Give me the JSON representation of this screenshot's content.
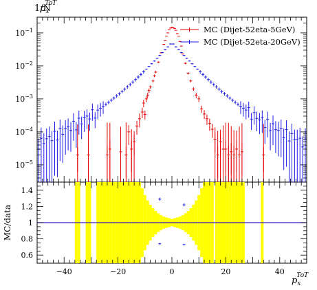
{
  "chart_data": [
    {
      "type": "scatter",
      "panel": "main",
      "title": "",
      "ylabel_prefix": "1/N",
      "ylabel_var": "p",
      "ylabel_sub": "x",
      "ylabel_sup": "ToT",
      "x_range": [
        -50,
        50
      ],
      "y_scale": "log",
      "y_range": [
        3e-06,
        0.3
      ],
      "y_ticks": [
        {
          "value": 1e-05,
          "mantissa": "10",
          "exp": "−5"
        },
        {
          "value": 0.0001,
          "mantissa": "10",
          "exp": "−4"
        },
        {
          "value": 0.001,
          "mantissa": "10",
          "exp": "−3"
        },
        {
          "value": 0.01,
          "mantissa": "10",
          "exp": "−2"
        },
        {
          "value": 0.1,
          "mantissa": "10",
          "exp": "−1"
        }
      ],
      "legend_position": "top-right",
      "series": [
        {
          "name": "MC (Dijet-52eta-5GeV)",
          "color": "#e60000",
          "marker": "error-bars",
          "points": [
            [
              -35.0,
              2e-05,
              0.7
            ],
            [
              -31.0,
              2e-05,
              0.8
            ],
            [
              -24.0,
              2e-05,
              0.9
            ],
            [
              -23.0,
              3e-05,
              0.9
            ],
            [
              -19.0,
              2.5e-05,
              0.8
            ],
            [
              -17.0,
              2e-05,
              0.8
            ],
            [
              -16.0,
              0.0001,
              0.6
            ],
            [
              -15.0,
              3e-05,
              0.8
            ],
            [
              -14.0,
              5e-05,
              0.6
            ],
            [
              -13.0,
              0.00015,
              0.45
            ],
            [
              -12.0,
              0.00025,
              0.45
            ],
            [
              -11.0,
              0.0004,
              0.35
            ],
            [
              -10.5,
              0.00075,
              0.25
            ],
            [
              -10.0,
              0.00034,
              0.3
            ],
            [
              -9.5,
              0.001,
              0.2
            ],
            [
              -9.0,
              0.0013,
              0.18
            ],
            [
              -8.5,
              0.0018,
              0.15
            ],
            [
              -8.0,
              0.0023,
              0.12
            ],
            [
              -7.0,
              0.0035,
              0.1
            ],
            [
              -6.5,
              0.005,
              0.09
            ],
            [
              -6.0,
              0.0065,
              0.08
            ],
            [
              -5.0,
              0.013,
              0.06
            ],
            [
              -4.0,
              0.025,
              0.04
            ],
            [
              -3.0,
              0.045,
              0.03
            ],
            [
              -2.5,
              0.06,
              0.02
            ],
            [
              -2.0,
              0.08,
              0.02
            ],
            [
              -1.5,
              0.1,
              0.02
            ],
            [
              -1.0,
              0.125,
              0.015
            ],
            [
              -0.5,
              0.14,
              0.015
            ],
            [
              0.0,
              0.15,
              0.015
            ],
            [
              0.5,
              0.145,
              0.015
            ],
            [
              1.0,
              0.135,
              0.015
            ],
            [
              1.5,
              0.12,
              0.015
            ],
            [
              2.0,
              0.095,
              0.02
            ],
            [
              2.5,
              0.08,
              0.02
            ],
            [
              3.0,
              0.055,
              0.03
            ],
            [
              3.5,
              0.04,
              0.03
            ],
            [
              4.0,
              0.023,
              0.04
            ],
            [
              5.0,
              0.012,
              0.06
            ],
            [
              6.0,
              0.006,
              0.08
            ],
            [
              7.0,
              0.0035,
              0.1
            ],
            [
              8.0,
              0.002,
              0.12
            ],
            [
              9.0,
              0.0013,
              0.18
            ],
            [
              10.0,
              0.001,
              0.2
            ],
            [
              11.0,
              0.0005,
              0.25
            ],
            [
              12.0,
              0.00035,
              0.3
            ],
            [
              13.0,
              0.00025,
              0.35
            ],
            [
              14.0,
              0.00018,
              0.4
            ],
            [
              15.0,
              0.00012,
              0.45
            ],
            [
              16.0,
              6e-05,
              0.6
            ],
            [
              17.0,
              2e-05,
              0.8
            ],
            [
              18.0,
              5e-05,
              0.6
            ],
            [
              19.0,
              3e-05,
              0.8
            ],
            [
              20.0,
              3e-05,
              0.8
            ],
            [
              21.0,
              2e-05,
              0.9
            ],
            [
              22.0,
              2.5e-05,
              0.8
            ],
            [
              23.0,
              2e-05,
              0.9
            ],
            [
              24.0,
              3e-05,
              0.8
            ],
            [
              25.0,
              2e-05,
              0.9
            ],
            [
              26.0,
              2.5e-05,
              0.8
            ],
            [
              34.0,
              2e-05,
              0.7
            ]
          ]
        },
        {
          "name": "MC (Dijet-52eta-20GeV)",
          "color": "#1a1ae6",
          "marker": "error-bars",
          "profile_formula": "0.044*exp(-|x|/4.6) + 6.0e-3*exp(-|x|/8.0) + 1.1e-3*exp(-|x|/14.0)",
          "bin_step": 1,
          "x_span": [
            -49.5,
            49.5
          ]
        }
      ]
    },
    {
      "type": "scatter",
      "panel": "ratio",
      "ylabel": "MC/data",
      "xlabel_var": "p",
      "xlabel_sub": "x",
      "xlabel_sup": "ToT",
      "x_range": [
        -50,
        50
      ],
      "y_range": [
        0.5,
        1.5
      ],
      "x_ticks": [
        -40,
        -20,
        0,
        20,
        40
      ],
      "x_tick_labels": [
        "−40",
        "−20",
        "0",
        "20",
        "40"
      ],
      "y_ticks": [
        0.6,
        0.8,
        1,
        1.2,
        1.4
      ],
      "y_tick_labels": [
        "0.6",
        "0.8",
        "1",
        "1.2",
        "1.4"
      ],
      "reference_line": 1.0,
      "uncertainty_band_color": "#ffff00",
      "full_band_bins_x": [
        -35.5,
        -34.5,
        -31.5,
        -30.5,
        -27.5,
        -26.5,
        -25.5,
        -24.5,
        -23.5,
        -22.5,
        -21.5,
        -20.5,
        -19.5,
        -18.5,
        -17.5,
        -16.5,
        -15.5,
        -14.5,
        -13.5,
        16.5,
        17.5,
        18.5,
        19.5,
        20.5,
        21.5,
        22.5,
        23.5,
        24.5,
        25.5,
        26.5,
        33.5
      ],
      "band_halfwidth_formula": "0.5 * exp(-(|x|-3)/5.5) for 3<=|x|<=13.5, min 0.05 near 0",
      "series": [
        {
          "name": "MC (Dijet-52eta-5GeV)",
          "color": "#e60000",
          "points": [
            [
              -4.5,
              1.0
            ],
            [
              4.5,
              1.0
            ]
          ]
        },
        {
          "name": "MC (Dijet-52eta-20GeV)",
          "color": "#1a1ae6",
          "points": [
            [
              -4.5,
              1.29,
              0.02
            ],
            [
              4.5,
              1.22,
              0.02
            ],
            [
              -4.5,
              0.74,
              0.01
            ],
            [
              4.5,
              0.73,
              0.01
            ]
          ]
        }
      ]
    }
  ]
}
